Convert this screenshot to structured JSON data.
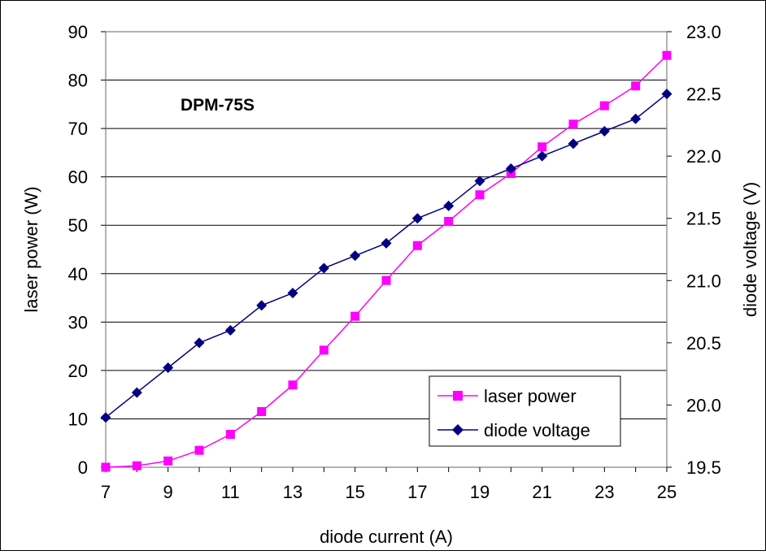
{
  "chart_data": {
    "type": "line",
    "annotation": "DPM-75S",
    "xlabel": "diode current (A)",
    "ylabel_left": "laser power (W)",
    "ylabel_right": "diode voltage (V)",
    "xlim": [
      7,
      25
    ],
    "ylim_left": [
      0,
      90
    ],
    "ylim_right": [
      19.5,
      23.0
    ],
    "x_ticks": [
      "7",
      "9",
      "11",
      "13",
      "15",
      "17",
      "19",
      "21",
      "23",
      "25"
    ],
    "y_ticks_left": [
      "0",
      "10",
      "20",
      "30",
      "40",
      "50",
      "60",
      "70",
      "80",
      "90"
    ],
    "y_ticks_right": [
      "19.5",
      "20.0",
      "20.5",
      "21.0",
      "21.5",
      "22.0",
      "22.5",
      "23.0"
    ],
    "grid": "horizontal",
    "legend_position": "bottom-right",
    "x": [
      7,
      8,
      9,
      10,
      11,
      12,
      13,
      14,
      15,
      16,
      17,
      18,
      19,
      20,
      21,
      22,
      23,
      24,
      25
    ],
    "series": [
      {
        "name": "laser power",
        "axis": "left",
        "color": "#ff00ff",
        "marker": "square",
        "values": [
          0,
          0.3,
          1.3,
          3.5,
          6.8,
          11.5,
          17,
          24.2,
          31.2,
          38.6,
          45.8,
          50.8,
          56.3,
          60.7,
          66.2,
          70.9,
          74.7,
          78.8,
          85.1
        ]
      },
      {
        "name": "diode voltage",
        "axis": "right",
        "color": "#000080",
        "marker": "diamond",
        "values": [
          19.9,
          20.1,
          20.3,
          20.5,
          20.6,
          20.8,
          20.9,
          21.1,
          21.2,
          21.3,
          21.5,
          21.6,
          21.8,
          21.9,
          22.0,
          22.1,
          22.2,
          22.3,
          22.5
        ]
      }
    ]
  }
}
